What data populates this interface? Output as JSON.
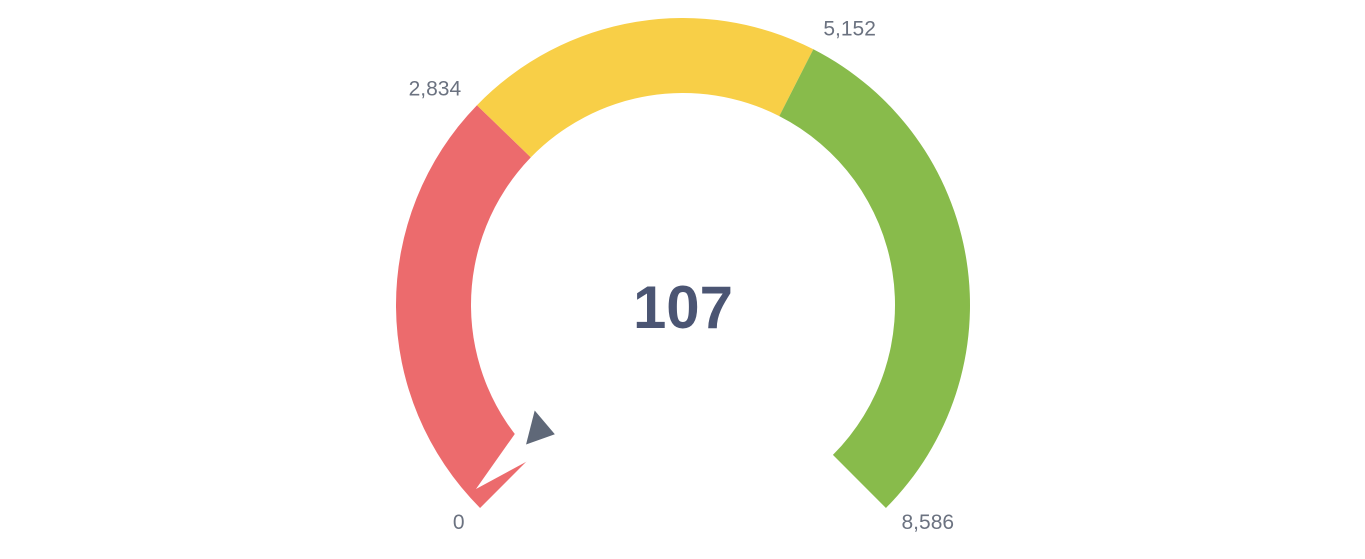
{
  "chart_data": {
    "type": "gauge",
    "value": 107,
    "display_value": "107",
    "min": 0,
    "max": 8586,
    "bands": [
      {
        "from": 0,
        "to": 2834,
        "color": "#ec6b6d"
      },
      {
        "from": 2834,
        "to": 5152,
        "color": "#f8cf47"
      },
      {
        "from": 5152,
        "to": 8586,
        "color": "#88bb4b"
      }
    ],
    "tick_labels": [
      {
        "value": 0,
        "label": "0"
      },
      {
        "value": 2834,
        "label": "2,834"
      },
      {
        "value": 5152,
        "label": "5,152"
      },
      {
        "value": 8586,
        "label": "8,586"
      }
    ],
    "needle_color": "#5f6878"
  }
}
